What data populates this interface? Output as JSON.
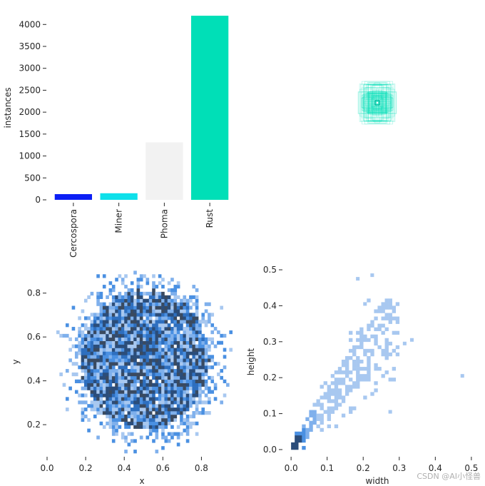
{
  "watermark": "CSDN @AI小怪兽",
  "chart_data": [
    {
      "type": "bar",
      "categories": [
        "Cercospora",
        "Miner",
        "Phoma",
        "Rust"
      ],
      "values": [
        130,
        150,
        1310,
        4200
      ],
      "colors": [
        "#0c1ff5",
        "#0ee0ea",
        "#f2f2f2",
        "#00dfb7"
      ],
      "xlabel": "",
      "ylabel": "instances",
      "ylim": [
        0,
        4200
      ],
      "yticks": [
        0,
        500,
        1000,
        1500,
        2000,
        2500,
        3000,
        3500,
        4000
      ]
    },
    {
      "type": "scatter",
      "description_kind": "bounding-box-overlay",
      "color": "#00dfb7",
      "note": "",
      "boxes_wh": [
        [
          0.05,
          0.05
        ],
        [
          0.1,
          0.12
        ],
        [
          0.15,
          0.18
        ],
        [
          0.2,
          0.25
        ],
        [
          0.25,
          0.3
        ],
        [
          0.3,
          0.35
        ],
        [
          0.35,
          0.4
        ],
        [
          0.4,
          0.45
        ],
        [
          0.45,
          0.5
        ],
        [
          0.5,
          0.45
        ],
        [
          0.4,
          0.5
        ],
        [
          0.3,
          0.2
        ],
        [
          0.2,
          0.3
        ],
        [
          0.12,
          0.08
        ],
        [
          0.08,
          0.14
        ]
      ]
    },
    {
      "type": "heatmap",
      "xlabel": "x",
      "ylabel": "y",
      "xlim": [
        0.0,
        0.95
      ],
      "ylim": [
        0.07,
        0.9
      ],
      "xticks": [
        "0.0",
        "0.2",
        "0.4",
        "0.6",
        "0.8"
      ],
      "yticks": [
        "0.2",
        "0.4",
        "0.6",
        "0.8"
      ],
      "distribution": {
        "center_x": 0.5,
        "center_y": 0.49,
        "radius_x": 0.42,
        "radius_y": 0.4
      }
    },
    {
      "type": "heatmap",
      "xlabel": "width",
      "ylabel": "height",
      "xlim": [
        -0.02,
        0.52
      ],
      "ylim": [
        -0.01,
        0.51
      ],
      "xticks": [
        "0.0",
        "0.1",
        "0.2",
        "0.3",
        "0.4",
        "0.5"
      ],
      "yticks": [
        "0.0",
        "0.1",
        "0.2",
        "0.3",
        "0.4",
        "0.5"
      ],
      "outliers": [
        [
          0.47,
          0.2
        ],
        [
          0.33,
          0.3
        ],
        [
          0.31,
          0.29
        ],
        [
          0.27,
          0.1
        ],
        [
          0.22,
          0.48
        ],
        [
          0.18,
          0.47
        ],
        [
          0.2,
          0.4
        ]
      ]
    }
  ]
}
